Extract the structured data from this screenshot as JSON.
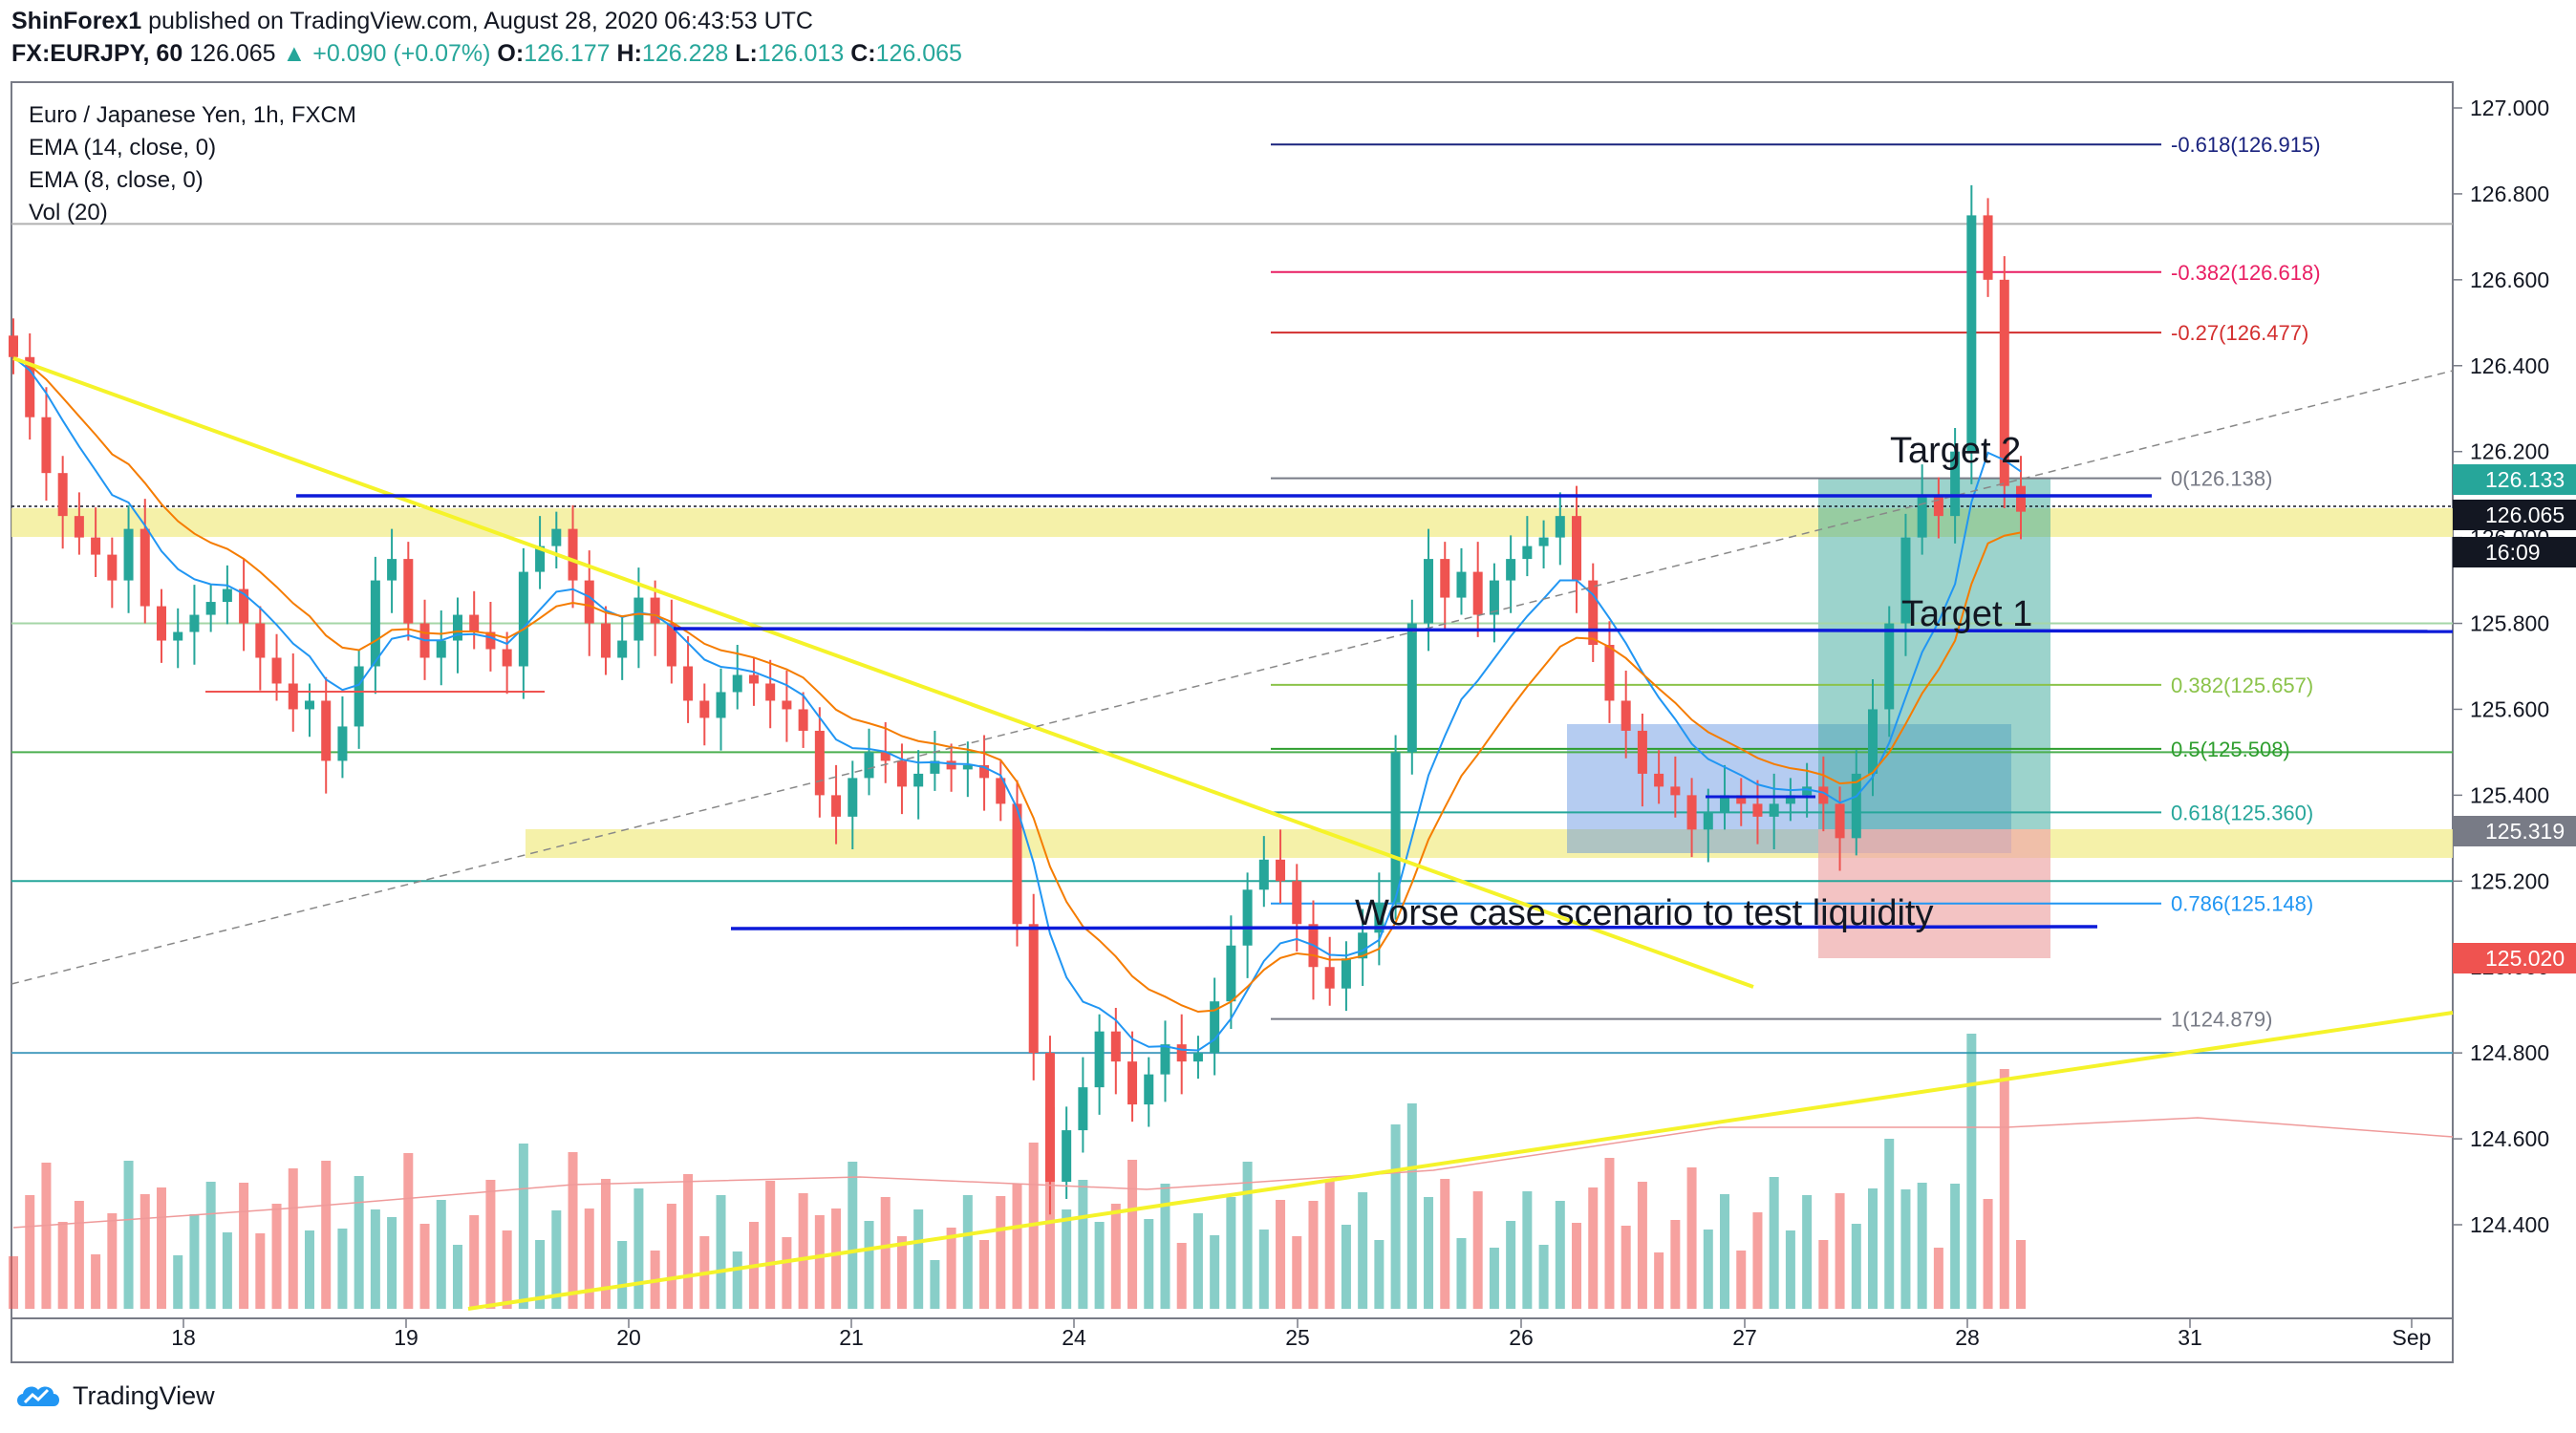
{
  "header": {
    "author": "ShinForex1",
    "published_text": "published on TradingView.com, August 28, 2020 06:43:53 UTC",
    "symbol": "FX:EURJPY, 60",
    "last": "126.065",
    "change": "▲ +0.090 (+0.07%)",
    "o_label": "O:",
    "o_val": "126.177",
    "h_label": "H:",
    "h_val": "126.228",
    "l_label": "L:",
    "l_val": "126.013",
    "c_label": "C:",
    "c_val": "126.065"
  },
  "legend": {
    "title": "Euro / Japanese Yen, 1h, FXCM",
    "ema14": "EMA (14, close, 0)",
    "ema8": "EMA (8, close, 0)",
    "vol": "Vol (20)"
  },
  "footer": {
    "brand": "TradingView"
  },
  "colors": {
    "up": "#26a69a",
    "down": "#ef5350",
    "ema_blue": "#2196f3",
    "ema_orange": "#f57c00",
    "yellow": "#f5f32a",
    "support": "#0d1bd9",
    "zone_yellow": "#f3ef9a"
  },
  "chart_data": {
    "type": "candlestick",
    "title": "Euro / Japanese Yen, 1h, FXCM",
    "yaxis": {
      "ticks": [
        "127.000",
        "126.800",
        "126.600",
        "126.400",
        "126.200",
        "126.000",
        "125.800",
        "125.600",
        "125.400",
        "125.200",
        "125.000",
        "124.800",
        "124.600",
        "124.400"
      ],
      "ylim": [
        124.25,
        127.05
      ]
    },
    "xaxis": {
      "ticks": [
        "18",
        "19",
        "20",
        "21",
        "24",
        "25",
        "26",
        "27",
        "28",
        "31",
        "Sep"
      ]
    },
    "price_labels": [
      {
        "value": "126.133",
        "color": "#26a69a"
      },
      {
        "value": "126.065",
        "color": "#131722"
      },
      {
        "value": "16:09",
        "color": "#131722"
      },
      {
        "value": "125.319",
        "color": "#787b86"
      },
      {
        "value": "125.020",
        "color": "#ef5350"
      }
    ],
    "fibonacci": [
      {
        "label": "-0.618(126.915)",
        "value": 126.915,
        "color": "#1a237e"
      },
      {
        "label": "-0.382(126.618)",
        "value": 126.618,
        "color": "#e91e63"
      },
      {
        "label": "-0.27(126.477)",
        "value": 126.477,
        "color": "#d32f2f"
      },
      {
        "label": "0(126.138)",
        "value": 126.138,
        "color": "#787b86"
      },
      {
        "label": "0.382(125.657)",
        "value": 125.657,
        "color": "#8bc34a"
      },
      {
        "label": "0.5(125.508)",
        "value": 125.508,
        "color": "#2e9e2e"
      },
      {
        "label": "0.618(125.360)",
        "value": 125.36,
        "color": "#26a69a"
      },
      {
        "label": "0.786(125.148)",
        "value": 125.148,
        "color": "#2196f3"
      },
      {
        "label": "1(124.879)",
        "value": 124.879,
        "color": "#787b86"
      }
    ],
    "annotations": [
      "Target 2",
      "Target 1",
      "Worse case scenario to test liquidity"
    ],
    "support_levels": [
      126.07,
      125.785,
      125.09
    ],
    "close_series": [
      126.42,
      126.28,
      126.15,
      126.05,
      126.0,
      125.96,
      125.9,
      126.02,
      125.84,
      125.76,
      125.78,
      125.82,
      125.85,
      125.88,
      125.8,
      125.72,
      125.66,
      125.6,
      125.62,
      125.48,
      125.56,
      125.7,
      125.9,
      125.95,
      125.8,
      125.72,
      125.76,
      125.82,
      125.78,
      125.74,
      125.7,
      125.92,
      125.98,
      126.02,
      125.9,
      125.8,
      125.72,
      125.76,
      125.86,
      125.8,
      125.7,
      125.62,
      125.58,
      125.64,
      125.68,
      125.66,
      125.62,
      125.6,
      125.55,
      125.4,
      125.35,
      125.44,
      125.5,
      125.48,
      125.42,
      125.45,
      125.48,
      125.46,
      125.47,
      125.44,
      125.38,
      125.1,
      124.8,
      124.5,
      124.62,
      124.72,
      124.85,
      124.78,
      124.68,
      124.75,
      124.82,
      124.78,
      124.8,
      124.92,
      125.05,
      125.18,
      125.25,
      125.2,
      125.1,
      125.0,
      124.95,
      125.02,
      125.08,
      125.15,
      125.5,
      125.8,
      125.95,
      125.86,
      125.92,
      125.82,
      125.9,
      125.95,
      125.98,
      126.0,
      126.05,
      125.9,
      125.75,
      125.62,
      125.55,
      125.45,
      125.42,
      125.4,
      125.32,
      125.36,
      125.4,
      125.38,
      125.35,
      125.38,
      125.4,
      125.42,
      125.38,
      125.3,
      125.45,
      125.6,
      125.8,
      126.0,
      126.1,
      126.05,
      126.2,
      126.75,
      126.6,
      126.12,
      126.06
    ],
    "volume_note": "Volume bars colored by candle direction with Vol (20) MA"
  }
}
